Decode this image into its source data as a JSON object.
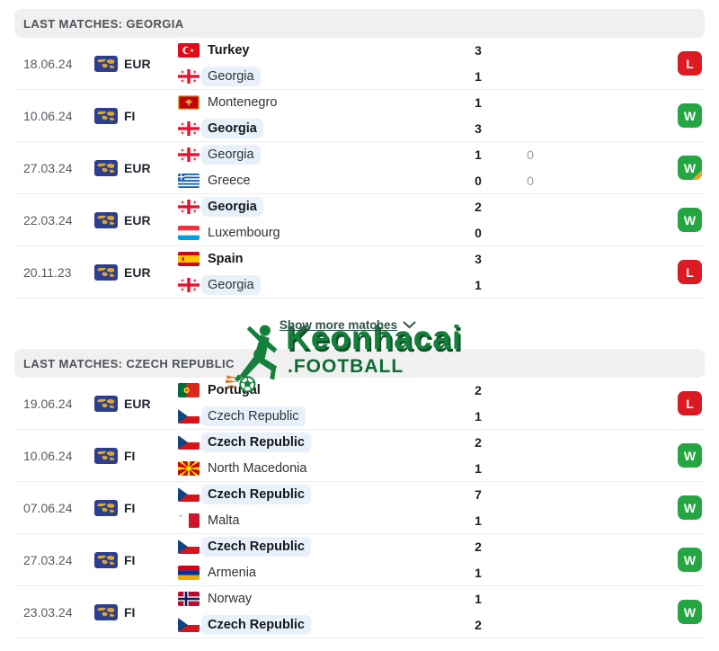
{
  "colors": {
    "win_badge": "#26a642",
    "loss_badge": "#db1b21",
    "corner_fold": "#e6a62a",
    "focus_pill": "#e8f1fb",
    "header_bar": "#f0f0f1",
    "logo_green": "#15803c"
  },
  "show_more": {
    "label": "Show more matches",
    "icon": "chevron-down-icon"
  },
  "logo": {
    "title": "Keonhacai",
    "subtitle": ".FOOTBALL",
    "icon": "football-player-icon"
  },
  "competition_icon": "world-map-icon",
  "sections": [
    {
      "header": "LAST MATCHES: GEORGIA",
      "rows": [
        {
          "date": "18.06.24",
          "competition": "EUR",
          "result": "L",
          "result_type": "loss",
          "corner": false,
          "teams": [
            {
              "name": "Turkey",
              "flag": "turkey",
              "bold": true,
              "focus": false,
              "score": "3",
              "score2": ""
            },
            {
              "name": "Georgia",
              "flag": "georgia",
              "bold": false,
              "focus": true,
              "score": "1",
              "score2": ""
            }
          ]
        },
        {
          "date": "10.06.24",
          "competition": "FI",
          "result": "W",
          "result_type": "win",
          "corner": false,
          "teams": [
            {
              "name": "Montenegro",
              "flag": "montenegro",
              "bold": false,
              "focus": false,
              "score": "1",
              "score2": ""
            },
            {
              "name": "Georgia",
              "flag": "georgia",
              "bold": true,
              "focus": true,
              "score": "3",
              "score2": ""
            }
          ]
        },
        {
          "date": "27.03.24",
          "competition": "EUR",
          "result": "W",
          "result_type": "win",
          "corner": true,
          "teams": [
            {
              "name": "Georgia",
              "flag": "georgia",
              "bold": false,
              "focus": true,
              "score": "1",
              "score2": "0"
            },
            {
              "name": "Greece",
              "flag": "greece",
              "bold": false,
              "focus": false,
              "score": "0",
              "score2": "0"
            }
          ]
        },
        {
          "date": "22.03.24",
          "competition": "EUR",
          "result": "W",
          "result_type": "win",
          "corner": false,
          "teams": [
            {
              "name": "Georgia",
              "flag": "georgia",
              "bold": true,
              "focus": true,
              "score": "2",
              "score2": ""
            },
            {
              "name": "Luxembourg",
              "flag": "luxembourg",
              "bold": false,
              "focus": false,
              "score": "0",
              "score2": ""
            }
          ]
        },
        {
          "date": "20.11.23",
          "competition": "EUR",
          "result": "L",
          "result_type": "loss",
          "corner": false,
          "teams": [
            {
              "name": "Spain",
              "flag": "spain",
              "bold": true,
              "focus": false,
              "score": "3",
              "score2": ""
            },
            {
              "name": "Georgia",
              "flag": "georgia",
              "bold": false,
              "focus": true,
              "score": "1",
              "score2": ""
            }
          ]
        }
      ]
    },
    {
      "header": "LAST MATCHES: CZECH REPUBLIC",
      "rows": [
        {
          "date": "19.06.24",
          "competition": "EUR",
          "result": "L",
          "result_type": "loss",
          "corner": false,
          "teams": [
            {
              "name": "Portugal",
              "flag": "portugal",
              "bold": true,
              "focus": false,
              "score": "2",
              "score2": ""
            },
            {
              "name": "Czech Republic",
              "flag": "czech-republic",
              "bold": false,
              "focus": true,
              "score": "1",
              "score2": ""
            }
          ]
        },
        {
          "date": "10.06.24",
          "competition": "FI",
          "result": "W",
          "result_type": "win",
          "corner": false,
          "teams": [
            {
              "name": "Czech Republic",
              "flag": "czech-republic",
              "bold": true,
              "focus": true,
              "score": "2",
              "score2": ""
            },
            {
              "name": "North Macedonia",
              "flag": "north-macedonia",
              "bold": false,
              "focus": false,
              "score": "1",
              "score2": ""
            }
          ]
        },
        {
          "date": "07.06.24",
          "competition": "FI",
          "result": "W",
          "result_type": "win",
          "corner": false,
          "teams": [
            {
              "name": "Czech Republic",
              "flag": "czech-republic",
              "bold": true,
              "focus": true,
              "score": "7",
              "score2": ""
            },
            {
              "name": "Malta",
              "flag": "malta",
              "bold": false,
              "focus": false,
              "score": "1",
              "score2": ""
            }
          ]
        },
        {
          "date": "27.03.24",
          "competition": "FI",
          "result": "W",
          "result_type": "win",
          "corner": false,
          "teams": [
            {
              "name": "Czech Republic",
              "flag": "czech-republic",
              "bold": true,
              "focus": true,
              "score": "2",
              "score2": ""
            },
            {
              "name": "Armenia",
              "flag": "armenia",
              "bold": false,
              "focus": false,
              "score": "1",
              "score2": ""
            }
          ]
        },
        {
          "date": "23.03.24",
          "competition": "FI",
          "result": "W",
          "result_type": "win",
          "corner": false,
          "teams": [
            {
              "name": "Norway",
              "flag": "norway",
              "bold": false,
              "focus": false,
              "score": "1",
              "score2": ""
            },
            {
              "name": "Czech Republic",
              "flag": "czech-republic",
              "bold": true,
              "focus": true,
              "score": "2",
              "score2": ""
            }
          ]
        }
      ]
    }
  ]
}
